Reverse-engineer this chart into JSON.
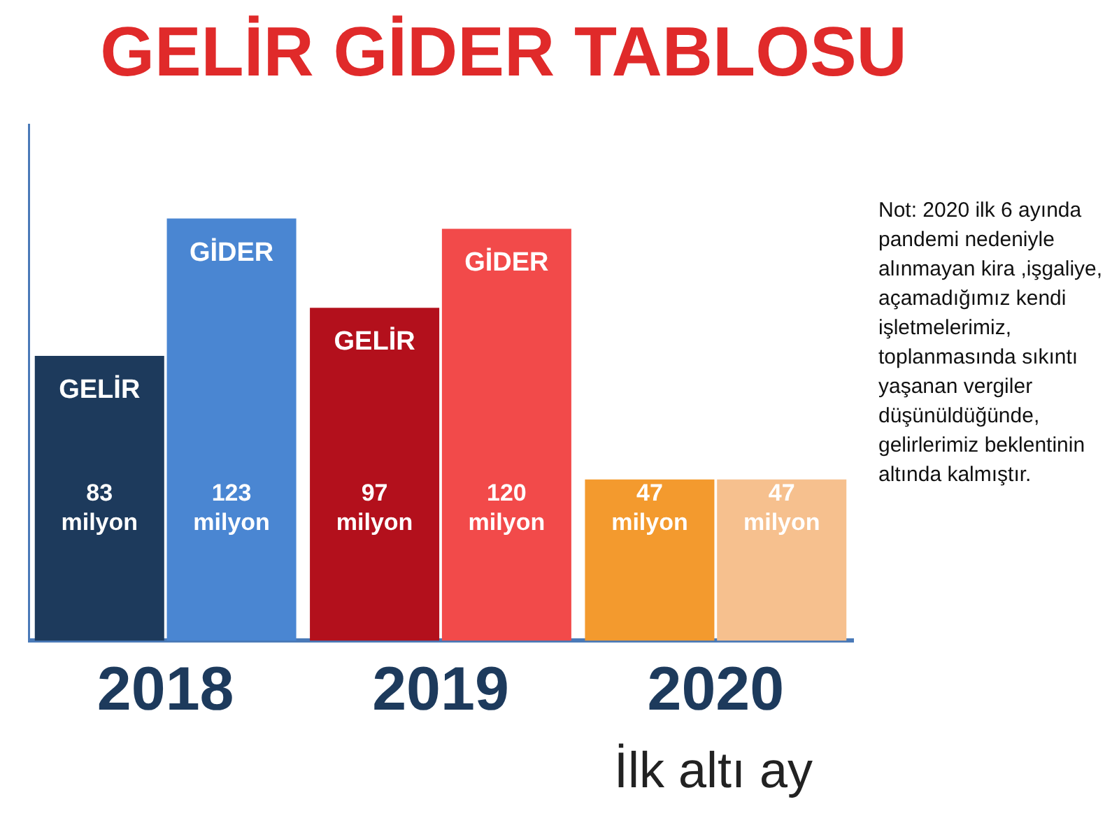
{
  "chart_data": {
    "type": "bar",
    "title": "GELİR GİDER TABLOSU",
    "categories": [
      "2018",
      "2019",
      "2020"
    ],
    "series": [
      {
        "name": "GELİR",
        "colors": [
          "#1d3a5c",
          "#b3101c",
          "#f39a2e"
        ],
        "values": [
          83,
          97,
          47
        ],
        "value_labels": [
          "83 milyon",
          "97 milyon",
          "47 milyon"
        ]
      },
      {
        "name": "GİDER",
        "colors": [
          "#4a86d2",
          "#f24a4a",
          "#f6c08e"
        ],
        "values": [
          123,
          120,
          47
        ],
        "value_labels": [
          "123 milyon",
          "120 milyon",
          "47 milyon"
        ]
      }
    ],
    "ylim": [
      0,
      150
    ],
    "legend": false,
    "tick_labels": "x",
    "annotations": [
      "Not: 2020 ilk 6 ayında pandemi nedeniyle alınmayan kira ,işgaliye, açamadığımız kendi işletmelerimiz, toplanmasında sıkıntı yaşanan vergiler düşünüldüğünde, gelirlerimiz beklentinin altında kalmıştır.",
      "İlk altı ay"
    ]
  }
}
